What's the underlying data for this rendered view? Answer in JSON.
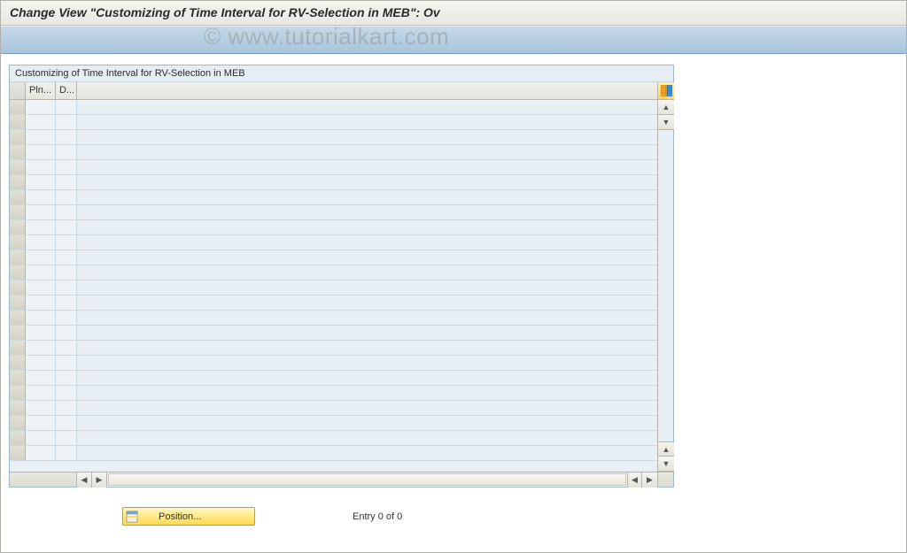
{
  "header": {
    "title": "Change View \"Customizing of Time Interval for RV-Selection in MEB\": Ov"
  },
  "watermark": "© www.tutorialkart.com",
  "panel": {
    "title": "Customizing of Time Interval for RV-Selection in MEB",
    "columns": {
      "col1": "Pln...",
      "col2": "D..."
    },
    "row_count": 24,
    "colors": {
      "panel_border": "#9fb7c7",
      "panel_bg": "#e6edf3",
      "row_bg": "#eef3f7",
      "header_bg_top": "#f0f0ea",
      "header_bg_bot": "#e6e6de"
    }
  },
  "footer": {
    "position_label": "Position...",
    "entry_text": "Entry 0 of 0"
  },
  "colors": {
    "titlebar_bg_top": "#f5f5f0",
    "titlebar_bg_bot": "#e8e8e0",
    "toolbar_bg_top": "#c5d9e8",
    "toolbar_bg_bot": "#a8c5db",
    "button_bg_top": "#fff9c7",
    "button_bg_bot": "#ffd94f"
  }
}
